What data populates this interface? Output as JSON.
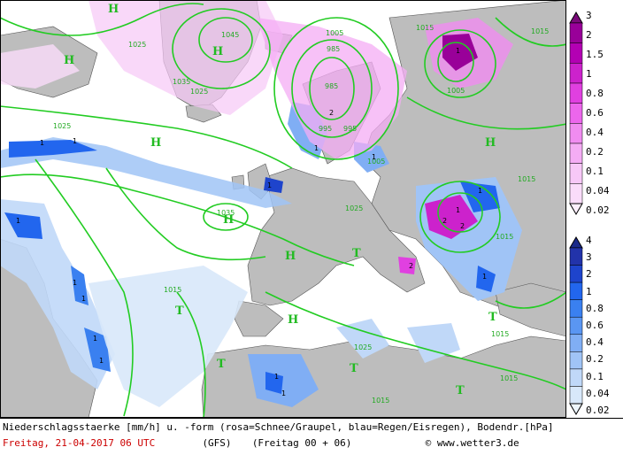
{
  "caption": {
    "line1": "Niederschlagsstaerke [mm/h] u. -form (rosa=Schnee/Graupel, blau=Regen/Eisregen), Bodendr.[hPa]",
    "date": "Freitag, 21-04-2017  06 UTC",
    "model": "(GFS)",
    "run": "(Freitag 00 + 06)",
    "credit": "© www.wetter3.de"
  },
  "legend_snow": {
    "labels": [
      "3",
      "2",
      "1.5",
      "1",
      "0.8",
      "0.6",
      "0.4",
      "0.2",
      "0.1",
      "0.04",
      "0.02"
    ],
    "colors": [
      "#7a0a7a",
      "#990099",
      "#b300b3",
      "#cc22cc",
      "#e040e0",
      "#ec66ec",
      "#f08cf0",
      "#f4acf4",
      "#f7c8f7",
      "#fadcfa",
      "#fdf0fd"
    ]
  },
  "legend_rain": {
    "labels": [
      "4",
      "3",
      "2",
      "1",
      "0.8",
      "0.6",
      "0.4",
      "0.2",
      "0.1",
      "0.04",
      "0.02"
    ],
    "colors": [
      "#1a2a8a",
      "#2233aa",
      "#1e44cc",
      "#2266ee",
      "#3a80f0",
      "#5a96f2",
      "#80aef4",
      "#a0c4f6",
      "#c0d8f8",
      "#d8e8fa",
      "#eef6fd"
    ]
  },
  "map": {
    "pressure_labels": [
      "1045",
      "1035",
      "1025",
      "1025",
      "1025",
      "1015",
      "1015",
      "1015",
      "1015",
      "1015",
      "1015",
      "1015",
      "1005",
      "1005",
      "995",
      "995",
      "985",
      "985",
      "1005",
      "1025",
      "1025",
      "1035",
      "1015"
    ],
    "highs_lows": [
      "H",
      "H",
      "H",
      "H",
      "H",
      "H",
      "H",
      "H",
      "T",
      "T",
      "T",
      "T",
      "T",
      "T"
    ],
    "precip_values": [
      "1",
      "1",
      "1",
      "1",
      "1",
      "1",
      "1",
      "1",
      "1",
      "1",
      "2",
      "2",
      "1",
      "1",
      "2",
      "1",
      "1",
      "2",
      "1",
      "1"
    ]
  }
}
